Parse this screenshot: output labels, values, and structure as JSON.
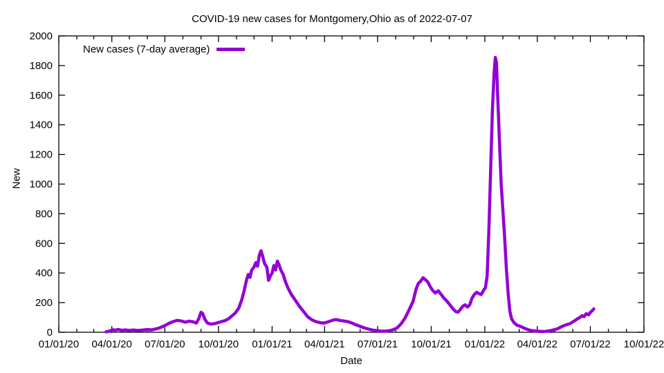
{
  "chart_data": {
    "type": "line",
    "title": "COVID-19 new cases for Montgomery,Ohio as of 2022-07-07",
    "xlabel": "Date",
    "ylabel": "New",
    "grid": false,
    "legend_position": "top-left-inside",
    "line_color": "#9400d3",
    "x_range": [
      "2020-01-01",
      "2022-10-01"
    ],
    "ylim": [
      0,
      2000
    ],
    "y_tick_step": 200,
    "y_ticks": [
      0,
      200,
      400,
      600,
      800,
      1000,
      1200,
      1400,
      1600,
      1800,
      2000
    ],
    "x_ticks": [
      {
        "date": "2020-01-01",
        "label": "01/01/20"
      },
      {
        "date": "2020-04-01",
        "label": "04/01/20"
      },
      {
        "date": "2020-07-01",
        "label": "07/01/20"
      },
      {
        "date": "2020-10-01",
        "label": "10/01/20"
      },
      {
        "date": "2021-01-01",
        "label": "01/01/21"
      },
      {
        "date": "2021-04-01",
        "label": "04/01/21"
      },
      {
        "date": "2021-07-01",
        "label": "07/01/21"
      },
      {
        "date": "2021-10-01",
        "label": "10/01/21"
      },
      {
        "date": "2022-01-01",
        "label": "01/01/22"
      },
      {
        "date": "2022-04-01",
        "label": "04/01/22"
      },
      {
        "date": "2022-07-01",
        "label": "07/01/22"
      },
      {
        "date": "2022-10-01",
        "label": "10/01/22"
      }
    ],
    "minor_ticks": "monthly",
    "series": [
      {
        "name": "New cases (7-day average)",
        "color": "#9400d3",
        "points": [
          [
            "2020-03-22",
            3
          ],
          [
            "2020-03-28",
            8
          ],
          [
            "2020-04-02",
            17
          ],
          [
            "2020-04-07",
            14
          ],
          [
            "2020-04-12",
            19
          ],
          [
            "2020-04-18",
            13
          ],
          [
            "2020-04-24",
            16
          ],
          [
            "2020-05-01",
            12
          ],
          [
            "2020-05-08",
            15
          ],
          [
            "2020-05-15",
            12
          ],
          [
            "2020-05-22",
            14
          ],
          [
            "2020-06-01",
            18
          ],
          [
            "2020-06-08",
            16
          ],
          [
            "2020-06-15",
            22
          ],
          [
            "2020-06-22",
            30
          ],
          [
            "2020-07-01",
            45
          ],
          [
            "2020-07-08",
            60
          ],
          [
            "2020-07-15",
            72
          ],
          [
            "2020-07-22",
            80
          ],
          [
            "2020-07-29",
            76
          ],
          [
            "2020-08-05",
            68
          ],
          [
            "2020-08-12",
            75
          ],
          [
            "2020-08-19",
            70
          ],
          [
            "2020-08-24",
            62
          ],
          [
            "2020-08-28",
            90
          ],
          [
            "2020-09-01",
            135
          ],
          [
            "2020-09-04",
            126
          ],
          [
            "2020-09-08",
            85
          ],
          [
            "2020-09-12",
            62
          ],
          [
            "2020-09-18",
            55
          ],
          [
            "2020-09-24",
            58
          ],
          [
            "2020-09-30",
            65
          ],
          [
            "2020-10-06",
            72
          ],
          [
            "2020-10-12",
            78
          ],
          [
            "2020-10-18",
            90
          ],
          [
            "2020-10-24",
            110
          ],
          [
            "2020-10-30",
            130
          ],
          [
            "2020-11-05",
            165
          ],
          [
            "2020-11-10",
            220
          ],
          [
            "2020-11-14",
            280
          ],
          [
            "2020-11-18",
            350
          ],
          [
            "2020-11-21",
            390
          ],
          [
            "2020-11-24",
            370
          ],
          [
            "2020-11-27",
            420
          ],
          [
            "2020-12-01",
            440
          ],
          [
            "2020-12-04",
            470
          ],
          [
            "2020-12-07",
            445
          ],
          [
            "2020-12-10",
            520
          ],
          [
            "2020-12-13",
            550
          ],
          [
            "2020-12-16",
            510
          ],
          [
            "2020-12-19",
            465
          ],
          [
            "2020-12-23",
            440
          ],
          [
            "2020-12-26",
            350
          ],
          [
            "2020-12-29",
            380
          ],
          [
            "2021-01-01",
            400
          ],
          [
            "2021-01-04",
            450
          ],
          [
            "2021-01-07",
            420
          ],
          [
            "2021-01-10",
            480
          ],
          [
            "2021-01-13",
            455
          ],
          [
            "2021-01-16",
            420
          ],
          [
            "2021-01-20",
            390
          ],
          [
            "2021-01-24",
            340
          ],
          [
            "2021-01-28",
            300
          ],
          [
            "2021-02-03",
            255
          ],
          [
            "2021-02-10",
            215
          ],
          [
            "2021-02-17",
            175
          ],
          [
            "2021-02-24",
            140
          ],
          [
            "2021-03-03",
            105
          ],
          [
            "2021-03-10",
            85
          ],
          [
            "2021-03-17",
            72
          ],
          [
            "2021-03-24",
            65
          ],
          [
            "2021-03-31",
            62
          ],
          [
            "2021-04-07",
            70
          ],
          [
            "2021-04-14",
            80
          ],
          [
            "2021-04-20",
            86
          ],
          [
            "2021-04-27",
            80
          ],
          [
            "2021-05-04",
            76
          ],
          [
            "2021-05-11",
            72
          ],
          [
            "2021-05-18",
            62
          ],
          [
            "2021-05-25",
            50
          ],
          [
            "2021-06-01",
            40
          ],
          [
            "2021-06-08",
            30
          ],
          [
            "2021-06-15",
            22
          ],
          [
            "2021-06-22",
            15
          ],
          [
            "2021-06-29",
            11
          ],
          [
            "2021-07-06",
            8
          ],
          [
            "2021-07-13",
            7
          ],
          [
            "2021-07-20",
            10
          ],
          [
            "2021-07-27",
            16
          ],
          [
            "2021-08-03",
            28
          ],
          [
            "2021-08-10",
            55
          ],
          [
            "2021-08-17",
            95
          ],
          [
            "2021-08-24",
            150
          ],
          [
            "2021-08-31",
            210
          ],
          [
            "2021-09-05",
            290
          ],
          [
            "2021-09-09",
            330
          ],
          [
            "2021-09-13",
            345
          ],
          [
            "2021-09-17",
            368
          ],
          [
            "2021-09-21",
            355
          ],
          [
            "2021-09-25",
            340
          ],
          [
            "2021-09-29",
            310
          ],
          [
            "2021-10-03",
            285
          ],
          [
            "2021-10-08",
            265
          ],
          [
            "2021-10-13",
            280
          ],
          [
            "2021-10-18",
            255
          ],
          [
            "2021-10-23",
            230
          ],
          [
            "2021-10-28",
            210
          ],
          [
            "2021-11-02",
            185
          ],
          [
            "2021-11-07",
            160
          ],
          [
            "2021-11-12",
            140
          ],
          [
            "2021-11-16",
            135
          ],
          [
            "2021-11-20",
            155
          ],
          [
            "2021-11-24",
            175
          ],
          [
            "2021-11-28",
            185
          ],
          [
            "2021-12-02",
            170
          ],
          [
            "2021-12-06",
            185
          ],
          [
            "2021-12-10",
            230
          ],
          [
            "2021-12-14",
            255
          ],
          [
            "2021-12-18",
            270
          ],
          [
            "2021-12-22",
            260
          ],
          [
            "2021-12-26",
            255
          ],
          [
            "2021-12-30",
            285
          ],
          [
            "2022-01-02",
            300
          ],
          [
            "2022-01-05",
            380
          ],
          [
            "2022-01-08",
            700
          ],
          [
            "2022-01-11",
            1100
          ],
          [
            "2022-01-14",
            1500
          ],
          [
            "2022-01-17",
            1750
          ],
          [
            "2022-01-19",
            1855
          ],
          [
            "2022-01-21",
            1820
          ],
          [
            "2022-01-23",
            1600
          ],
          [
            "2022-01-26",
            1300
          ],
          [
            "2022-01-29",
            1000
          ],
          [
            "2022-02-01",
            820
          ],
          [
            "2022-02-04",
            640
          ],
          [
            "2022-02-07",
            430
          ],
          [
            "2022-02-10",
            260
          ],
          [
            "2022-02-13",
            140
          ],
          [
            "2022-02-16",
            90
          ],
          [
            "2022-02-20",
            65
          ],
          [
            "2022-02-25",
            48
          ],
          [
            "2022-03-04",
            38
          ],
          [
            "2022-03-11",
            25
          ],
          [
            "2022-03-18",
            15
          ],
          [
            "2022-03-25",
            10
          ],
          [
            "2022-04-01",
            7
          ],
          [
            "2022-04-08",
            5
          ],
          [
            "2022-04-15",
            6
          ],
          [
            "2022-04-22",
            10
          ],
          [
            "2022-04-29",
            16
          ],
          [
            "2022-05-06",
            24
          ],
          [
            "2022-05-13",
            38
          ],
          [
            "2022-05-20",
            50
          ],
          [
            "2022-05-27",
            58
          ],
          [
            "2022-06-03",
            75
          ],
          [
            "2022-06-08",
            88
          ],
          [
            "2022-06-13",
            100
          ],
          [
            "2022-06-17",
            112
          ],
          [
            "2022-06-20",
            105
          ],
          [
            "2022-06-24",
            125
          ],
          [
            "2022-06-28",
            118
          ],
          [
            "2022-07-02",
            138
          ],
          [
            "2022-07-05",
            148
          ],
          [
            "2022-07-07",
            158
          ]
        ]
      }
    ]
  }
}
